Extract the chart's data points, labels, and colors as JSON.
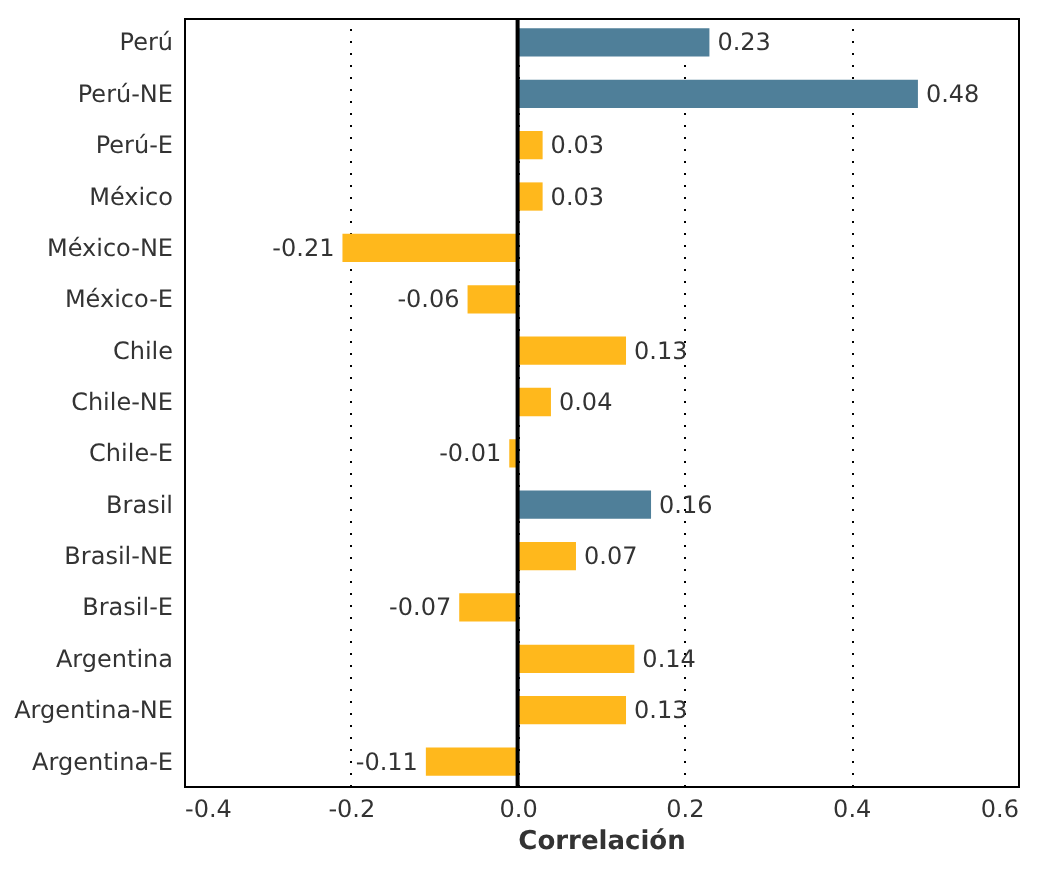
{
  "chart_data": {
    "type": "bar",
    "orientation": "horizontal",
    "xlabel": "Correlación",
    "categories": [
      "Perú",
      "Perú-NE",
      "Perú-E",
      "México",
      "México-NE",
      "México-E",
      "Chile",
      "Chile-NE",
      "Chile-E",
      "Brasil",
      "Brasil-NE",
      "Brasil-E",
      "Argentina",
      "Argentina-NE",
      "Argentina-E"
    ],
    "values": [
      0.23,
      0.48,
      0.03,
      0.03,
      -0.21,
      -0.06,
      0.13,
      0.04,
      -0.01,
      0.16,
      0.07,
      -0.07,
      0.14,
      0.13,
      -0.11
    ],
    "colors": [
      "#4f7f99",
      "#4f7f99",
      "#ffb81c",
      "#ffb81c",
      "#ffb81c",
      "#ffb81c",
      "#ffb81c",
      "#ffb81c",
      "#ffb81c",
      "#4f7f99",
      "#ffb81c",
      "#ffb81c",
      "#ffb81c",
      "#ffb81c",
      "#ffb81c"
    ],
    "xlim": [
      -0.4,
      0.6
    ],
    "xticks": [
      -0.4,
      -0.2,
      {
        "value": 0,
        "label": "0.0"
      },
      0.2,
      0.4,
      0.6
    ],
    "grid": "x",
    "data_labels": true,
    "ref_lines": [
      {
        "axis": "x",
        "value": 0,
        "color": "#000000"
      }
    ]
  }
}
